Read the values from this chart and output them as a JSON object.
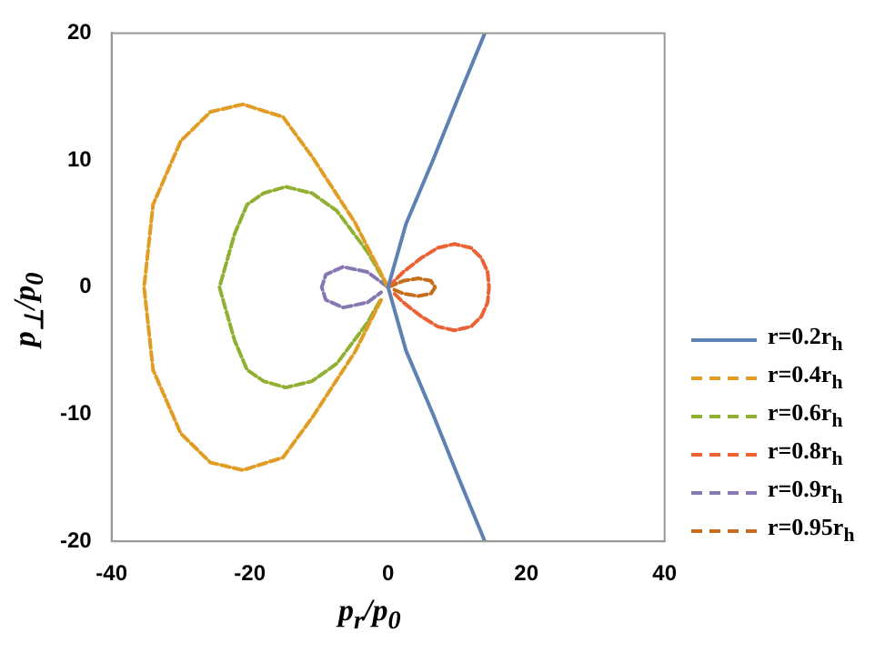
{
  "chart_data": {
    "type": "line",
    "xlabel": "p$_{r}$/p$_{0}$",
    "ylabel": "p$_{⊥}$/p$_{0}$",
    "xlim": [
      -40,
      40
    ],
    "ylim": [
      -20,
      20
    ],
    "xticks": [
      -40,
      -20,
      0,
      20,
      40
    ],
    "yticks": [
      -20,
      -10,
      0,
      10,
      20
    ],
    "grid": false,
    "legend": "right",
    "marker": "none",
    "series": [
      {
        "name": "r=0.2r$_{h}$",
        "color": "#5e81b5",
        "line_style": "solid",
        "x": [
          14,
          10.2,
          6.5,
          2.6,
          0,
          2.6,
          6.5,
          10.2,
          14
        ],
        "values": [
          20,
          15,
          10,
          5,
          0,
          -5,
          -10,
          -15,
          -20
        ]
      },
      {
        "name": "r=0.4r$_{h}$",
        "color": "#e19c24",
        "line_style": "dashed",
        "x": [
          0,
          -4.8,
          -10.9,
          -15.2,
          -21,
          -25.7,
          -30,
          -34,
          -35.3,
          -34,
          -30,
          -25.7,
          -21,
          -15.2,
          -10.9,
          -4.8,
          -1
        ],
        "values": [
          0,
          5.1,
          10.2,
          13.4,
          14.4,
          13.8,
          11.5,
          6.5,
          0,
          -6.5,
          -11.5,
          -13.8,
          -14.4,
          -13.4,
          -10.2,
          -5.1,
          -1
        ]
      },
      {
        "name": "r=0.6r$_{h}$",
        "color": "#8fb032",
        "line_style": "dashed",
        "x": [
          0,
          -3,
          -7.4,
          -11,
          -14.8,
          -18,
          -20.4,
          -22.2,
          -24.4,
          -22.2,
          -20.4,
          -18,
          -14.8,
          -11,
          -7.4,
          -3,
          -1
        ],
        "values": [
          0,
          2.8,
          6,
          7.4,
          7.9,
          7.4,
          6.5,
          4.2,
          0,
          -4.2,
          -6.5,
          -7.4,
          -7.9,
          -7.4,
          -6,
          -2.8,
          -0.9
        ]
      },
      {
        "name": "r=0.8r$_{h}$",
        "color": "#eb6235",
        "line_style": "dashed",
        "x": [
          0,
          2.2,
          4.8,
          7.2,
          9.6,
          12,
          13.5,
          14.4,
          14.6,
          14.4,
          13.5,
          12,
          9.6,
          7.2,
          4.8,
          2.2,
          0.9
        ],
        "values": [
          0,
          1.2,
          2.3,
          3.1,
          3.4,
          3.1,
          2.3,
          1.2,
          0,
          -1.2,
          -2.3,
          -3.1,
          -3.4,
          -3.1,
          -2.3,
          -1.2,
          -0.5
        ]
      },
      {
        "name": "r=0.9r$_{h}$",
        "color": "#8778b3",
        "line_style": "dashed",
        "x": [
          0,
          -3,
          -6.5,
          -9,
          -9.6,
          -9,
          -6.5,
          -3,
          -1
        ],
        "values": [
          0,
          1.2,
          1.6,
          1,
          0,
          -1,
          -1.6,
          -1.2,
          -0.4
        ]
      },
      {
        "name": "r=0.95r$_{h}$",
        "color": "#c56e1a",
        "line_style": "dashed",
        "x": [
          0,
          2.2,
          4.4,
          6.2,
          6.8,
          6.2,
          4.4,
          2.2,
          0.9
        ],
        "values": [
          0,
          0.5,
          0.7,
          0.5,
          0,
          -0.5,
          -0.7,
          -0.5,
          -0.2
        ]
      }
    ]
  }
}
